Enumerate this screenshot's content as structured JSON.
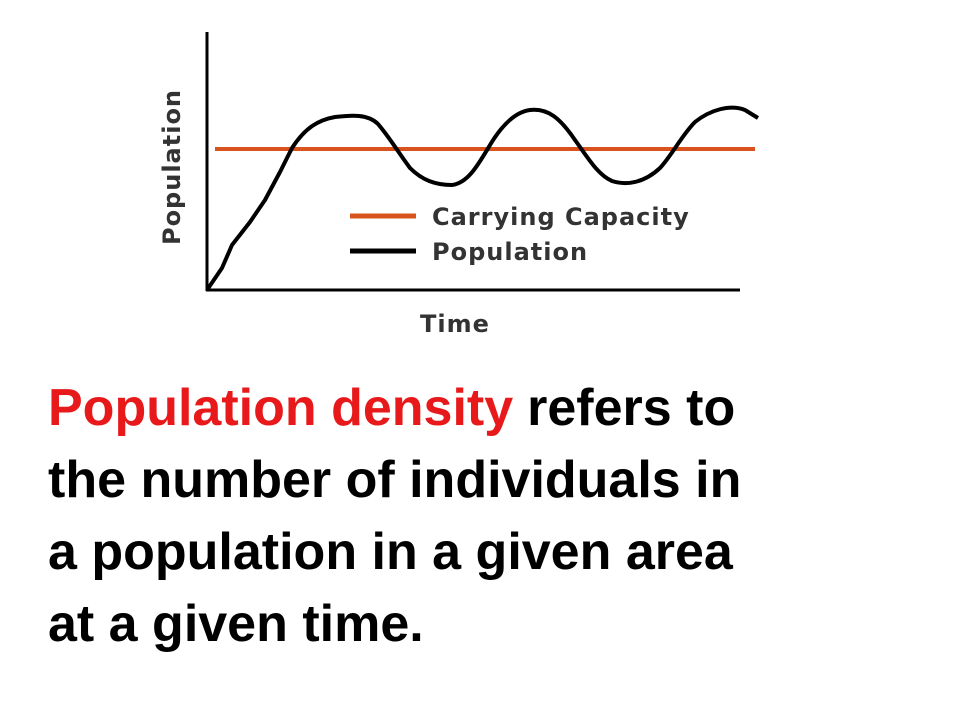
{
  "figure": {
    "y_label": "Population",
    "x_label": "Time",
    "legend": [
      "Carrying Capacity",
      "Population"
    ]
  },
  "body": {
    "highlight": "Population density",
    "lines": [
      "refers to",
      "the number of individuals in",
      "a population in a given area",
      "at a given time."
    ]
  }
}
